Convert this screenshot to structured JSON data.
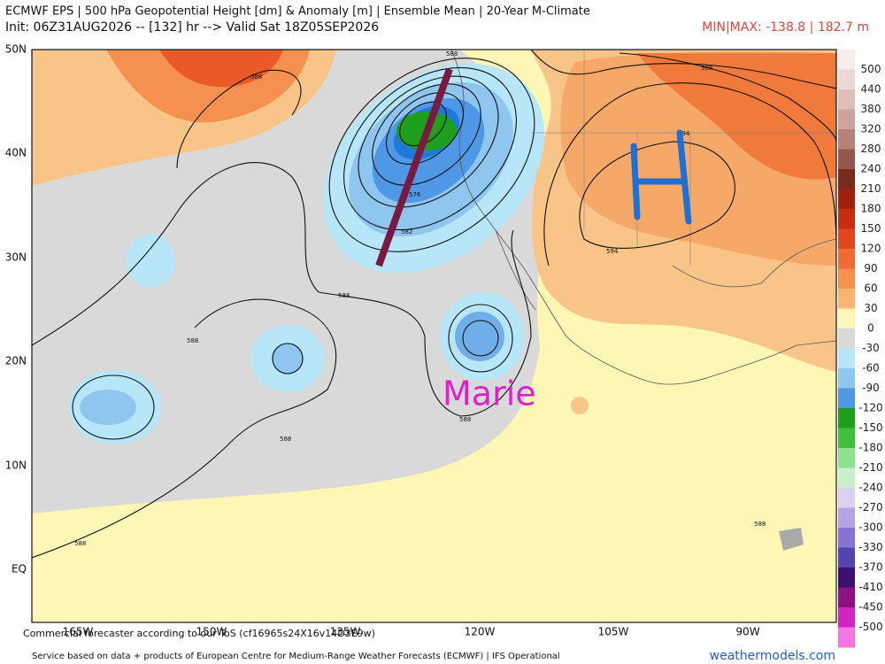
{
  "header": {
    "title": "ECMWF EPS | 500 hPa Geopotential Height [dm] & Anomaly [m] | Ensemble Mean | 20-Year M-Climate",
    "init": "Init: 06Z31AUG2026 -- [132] hr --> Valid Sat 18Z05SEP2026",
    "minmax": "MIN|MAX: -138.8 | 182.7 m"
  },
  "map": {
    "lat_labels": [
      "50N",
      "40N",
      "30N",
      "20N",
      "10N",
      "EQ"
    ],
    "lon_labels": [
      "165W",
      "150W",
      "135W",
      "120W",
      "105W",
      "90W"
    ],
    "contour_labels": [
      "588",
      "576",
      "582",
      "588",
      "588",
      "588",
      "588",
      "588",
      "594",
      "594",
      "588",
      "588",
      "588"
    ],
    "annotation": "Marie"
  },
  "colorbar": {
    "labels": [
      "500",
      "440",
      "380",
      "320",
      "280",
      "240",
      "210",
      "180",
      "150",
      "120",
      "90",
      "60",
      "30",
      "0",
      "-30",
      "-60",
      "-90",
      "-120",
      "-150",
      "-180",
      "-210",
      "-240",
      "-270",
      "-300",
      "-330",
      "-370",
      "-410",
      "-450",
      "-500"
    ],
    "colors": [
      "#f7ecec",
      "#ead8d4",
      "#dcc0b8",
      "#cca29a",
      "#b5817a",
      "#95584f",
      "#7a2a1a",
      "#a21f0e",
      "#c82c12",
      "#e2461f",
      "#f06c33",
      "#f5904f",
      "#f9b472",
      "#fdf6b5",
      "#d9d9d9",
      "#b6e6f8",
      "#8ec6f0",
      "#4f98e6",
      "#1ea01e",
      "#3fc13f",
      "#8fe08f",
      "#c9f0c9",
      "#d9d2f2",
      "#b3a4e2",
      "#8574d2",
      "#5444b2",
      "#3a1070",
      "#8c1282",
      "#d224c2",
      "#f276e2"
    ]
  },
  "footer": {
    "notice": "Commercial forecaster according to our ToS (cf16965s24X16v14D3E9w)",
    "source": "Service based on data + products of European Centre for Medium-Range Weather Forecasts (ECMWF) | IFS Operational",
    "site": "weathermodels.com"
  }
}
